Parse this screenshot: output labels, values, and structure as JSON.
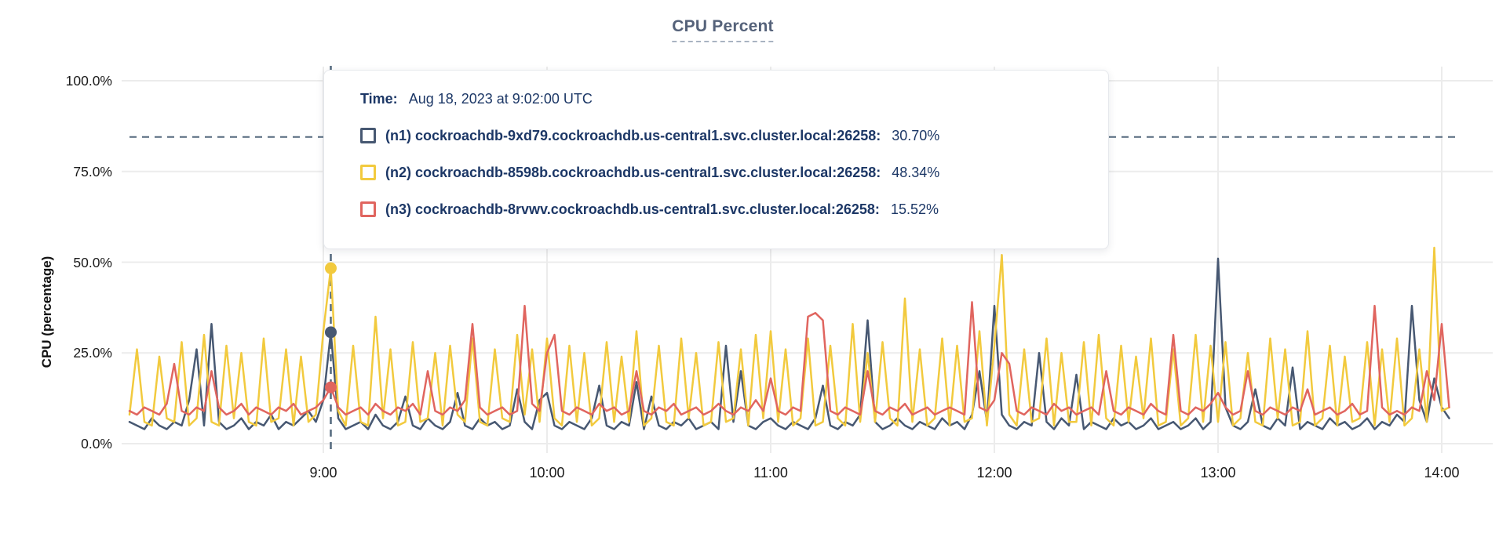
{
  "title": "CPU Percent",
  "colors": {
    "n1": "#475872",
    "n2": "#f2ca3e",
    "n3": "#e0655f",
    "guide": "#53687d",
    "grid": "#ececec",
    "tooltip_text": "#1c3766",
    "title_color": "#55627a"
  },
  "y_axis": {
    "label": "CPU (percentage)",
    "ticks": [
      "100.0%",
      "75.0%",
      "50.0%",
      "25.0%",
      "0.0%"
    ]
  },
  "x_axis": {
    "ticks": [
      "9:00",
      "10:00",
      "11:00",
      "12:00",
      "13:00",
      "14:00"
    ]
  },
  "tooltip": {
    "time_label": "Time:",
    "time_value": "Aug 18, 2023 at 9:02:00 UTC",
    "series": [
      {
        "id": "n1",
        "label": "(n1) cockroachdb-9xd79.cockroachdb.us-central1.svc.cluster.local:26258:",
        "value": "30.70%",
        "color": "#475872"
      },
      {
        "id": "n2",
        "label": "(n2) cockroachdb-8598b.cockroachdb.us-central1.svc.cluster.local:26258:",
        "value": "48.34%",
        "color": "#f2ca3e"
      },
      {
        "id": "n3",
        "label": "(n3) cockroachdb-8rvwv.cockroachdb.us-central1.svc.cluster.local:26258:",
        "value": "15.52%",
        "color": "#e0655f"
      }
    ]
  },
  "chart_data": {
    "type": "line",
    "title": "CPU Percent",
    "xlabel": "",
    "ylabel": "CPU (percentage)",
    "ylim": [
      0,
      100
    ],
    "y_gridlines": [
      0,
      25,
      50,
      75,
      100
    ],
    "grid": true,
    "legend_position": "tooltip-overlay",
    "x_start_minute": 488,
    "x_step_minutes": 2,
    "x_hour_tick_minutes": [
      540,
      600,
      660,
      720,
      780,
      840
    ],
    "x_hour_tick_labels": [
      "9:00",
      "10:00",
      "11:00",
      "12:00",
      "13:00",
      "14:00"
    ],
    "threshold_line_percent": 84.5,
    "highlight": {
      "minute": 542,
      "time": "Aug 18, 2023 at 9:02:00 UTC",
      "values": {
        "n1": 30.7,
        "n2": 48.34,
        "n3": 15.52
      }
    },
    "series": [
      {
        "name": "(n1) cockroachdb-9xd79.cockroachdb.us-central1.svc.cluster.local:26258",
        "color": "#475872",
        "values": [
          6,
          5,
          4,
          7,
          5,
          4,
          6,
          5,
          12,
          26,
          5,
          33,
          6,
          4,
          5,
          7,
          4,
          6,
          5,
          8,
          4,
          6,
          5,
          7,
          9,
          6,
          12,
          30.7,
          7,
          4,
          5,
          6,
          4,
          8,
          5,
          4,
          6,
          13,
          5,
          4,
          7,
          5,
          4,
          6,
          14,
          5,
          4,
          7,
          5,
          6,
          4,
          5,
          15,
          6,
          4,
          12,
          14,
          5,
          4,
          6,
          5,
          4,
          7,
          16,
          5,
          4,
          6,
          5,
          17,
          4,
          13,
          5,
          4,
          6,
          5,
          7,
          4,
          5,
          6,
          4,
          27,
          6,
          20,
          5,
          4,
          6,
          7,
          5,
          4,
          6,
          5,
          4,
          7,
          16,
          5,
          4,
          6,
          5,
          8,
          34,
          6,
          4,
          5,
          7,
          5,
          4,
          6,
          5,
          4,
          7,
          5,
          6,
          4,
          8,
          20,
          6,
          38,
          8,
          5,
          4,
          6,
          5,
          25,
          6,
          4,
          7,
          5,
          19,
          4,
          6,
          5,
          4,
          7,
          5,
          6,
          4,
          5,
          7,
          4,
          5,
          6,
          4,
          5,
          7,
          4,
          6,
          51,
          10,
          5,
          4,
          6,
          15,
          5,
          4,
          7,
          5,
          21,
          4,
          6,
          5,
          4,
          7,
          5,
          6,
          4,
          5,
          7,
          4,
          6,
          5,
          8,
          6,
          38,
          12,
          6,
          18,
          10,
          7
        ]
      },
      {
        "name": "(n2) cockroachdb-8598b.cockroachdb.us-central1.svc.cluster.local:26258",
        "color": "#f2ca3e",
        "values": [
          8,
          26,
          6,
          5,
          24,
          7,
          6,
          28,
          5,
          7,
          30,
          6,
          5,
          27,
          7,
          25,
          6,
          5,
          29,
          6,
          7,
          26,
          5,
          24,
          6,
          8,
          31,
          48.34,
          9,
          5,
          27,
          6,
          5,
          35,
          7,
          26,
          5,
          6,
          28,
          6,
          7,
          25,
          5,
          27,
          8,
          6,
          29,
          6,
          5,
          26,
          7,
          6,
          30,
          8,
          26,
          6,
          29,
          7,
          5,
          27,
          6,
          25,
          5,
          7,
          28,
          6,
          24,
          6,
          31,
          5,
          7,
          27,
          6,
          5,
          29,
          7,
          25,
          5,
          6,
          28,
          6,
          7,
          26,
          5,
          30,
          7,
          31,
          6,
          26,
          5,
          7,
          29,
          5,
          6,
          27,
          7,
          5,
          33,
          6,
          25,
          6,
          28,
          7,
          5,
          40,
          6,
          26,
          5,
          7,
          29,
          5,
          27,
          6,
          7,
          31,
          5,
          27,
          52,
          8,
          5,
          26,
          6,
          7,
          29,
          5,
          25,
          6,
          6,
          28,
          5,
          30,
          7,
          5,
          27,
          6,
          24,
          7,
          29,
          5,
          6,
          26,
          5,
          7,
          30,
          6,
          27,
          6,
          28,
          5,
          7,
          25,
          6,
          5,
          29,
          7,
          26,
          5,
          6,
          31,
          5,
          7,
          27,
          5,
          24,
          6,
          7,
          28,
          5,
          26,
          6,
          29,
          5,
          7,
          26,
          6,
          54,
          9,
          10
        ]
      },
      {
        "name": "(n3) cockroachdb-8rvwv.cockroachdb.us-central1.svc.cluster.local:26258",
        "color": "#e0655f",
        "values": [
          9,
          8,
          10,
          9,
          8,
          11,
          22,
          9,
          8,
          10,
          9,
          20,
          10,
          8,
          9,
          11,
          8,
          10,
          9,
          8,
          10,
          9,
          11,
          8,
          9,
          10,
          12,
          15.52,
          10,
          8,
          9,
          10,
          8,
          11,
          9,
          8,
          10,
          9,
          11,
          8,
          20,
          9,
          8,
          10,
          9,
          12,
          33,
          10,
          8,
          9,
          10,
          8,
          9,
          38,
          11,
          9,
          25,
          30,
          9,
          8,
          10,
          9,
          8,
          11,
          9,
          10,
          8,
          9,
          20,
          9,
          8,
          10,
          9,
          11,
          8,
          9,
          10,
          8,
          9,
          11,
          9,
          8,
          10,
          9,
          12,
          9,
          18,
          9,
          8,
          10,
          9,
          35,
          36,
          34,
          9,
          8,
          10,
          9,
          8,
          20,
          9,
          8,
          10,
          9,
          11,
          8,
          9,
          10,
          8,
          9,
          10,
          9,
          8,
          39,
          10,
          9,
          12,
          25,
          22,
          9,
          8,
          10,
          9,
          8,
          11,
          9,
          10,
          8,
          9,
          10,
          8,
          20,
          9,
          8,
          10,
          9,
          8,
          11,
          9,
          8,
          30,
          9,
          8,
          10,
          9,
          11,
          14,
          10,
          8,
          9,
          20,
          9,
          8,
          10,
          9,
          8,
          10,
          9,
          15,
          8,
          9,
          10,
          8,
          9,
          11,
          8,
          9,
          38,
          10,
          8,
          9,
          8,
          10,
          9,
          20,
          12,
          33,
          10
        ]
      }
    ]
  }
}
